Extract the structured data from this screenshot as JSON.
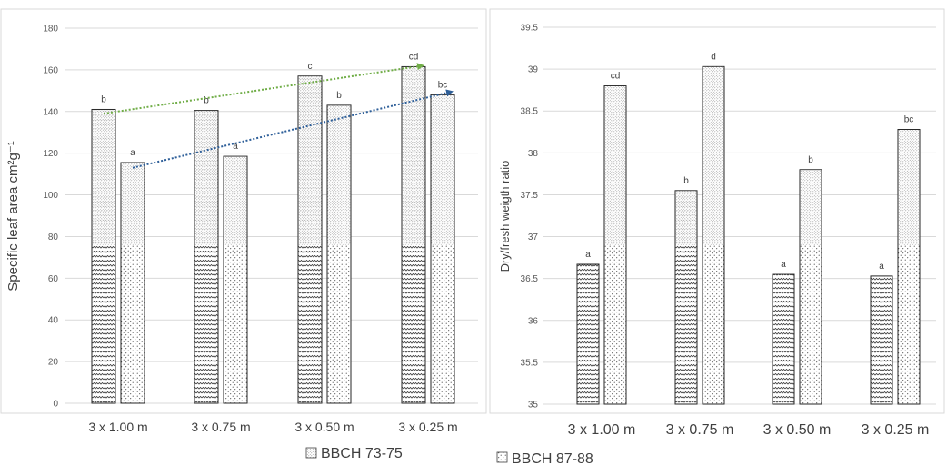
{
  "chart_data": [
    {
      "type": "bar",
      "categories": [
        "3 x 1.00 m",
        "3 x 0.75 m",
        "3 x 0.50 m",
        "3 x 0.25 m"
      ],
      "series": [
        {
          "name": "BBCH 73-75",
          "values": [
            141,
            140.5,
            157,
            161.5
          ],
          "labels": [
            "b",
            "b",
            "c",
            "cd"
          ]
        },
        {
          "name": "BBCH 87-88",
          "values": [
            115.5,
            118.5,
            143,
            148
          ],
          "labels": [
            "a",
            "a",
            "b",
            "bc"
          ]
        }
      ],
      "ylabel": "Specific leaf area cm²g⁻¹",
      "ylim": [
        0,
        180
      ],
      "yticks": [
        "0",
        "20",
        "40",
        "60",
        "80",
        "100",
        "120",
        "140",
        "160",
        "180"
      ],
      "grid": true,
      "trend_arrows": [
        {
          "series": "BBCH 73-75",
          "color": "#70ad47",
          "from": [
            0,
            139
          ],
          "to": [
            3,
            162
          ]
        },
        {
          "series": "BBCH 87-88",
          "color": "#2e5f99",
          "from": [
            0,
            113
          ],
          "to": [
            3,
            149.5
          ]
        }
      ]
    },
    {
      "type": "bar",
      "categories": [
        "3 x 1.00 m",
        "3 x 0.75 m",
        "3 x 0.50 m",
        "3 x 0.25 m"
      ],
      "series": [
        {
          "name": "BBCH 73-75",
          "values": [
            36.67,
            37.55,
            36.55,
            36.53
          ],
          "labels": [
            "a",
            "b",
            "a",
            "a"
          ]
        },
        {
          "name": "BBCH 87-88",
          "values": [
            38.8,
            39.03,
            37.8,
            38.28
          ],
          "labels": [
            "cd",
            "d",
            "b",
            "bc"
          ]
        }
      ],
      "ylabel": "Dry/fresh weigth ratio",
      "ylim": [
        35,
        39.5
      ],
      "yticks": [
        "35",
        "35.5",
        "36",
        "36.5",
        "37",
        "37.5",
        "38",
        "38.5",
        "39",
        "39.5"
      ],
      "grid": true
    }
  ],
  "legend": {
    "placement": "bottom",
    "items": [
      {
        "label": "BBCH 73-75",
        "pattern": "wave"
      },
      {
        "label": "BBCH 87-88",
        "pattern": "dots"
      }
    ]
  }
}
